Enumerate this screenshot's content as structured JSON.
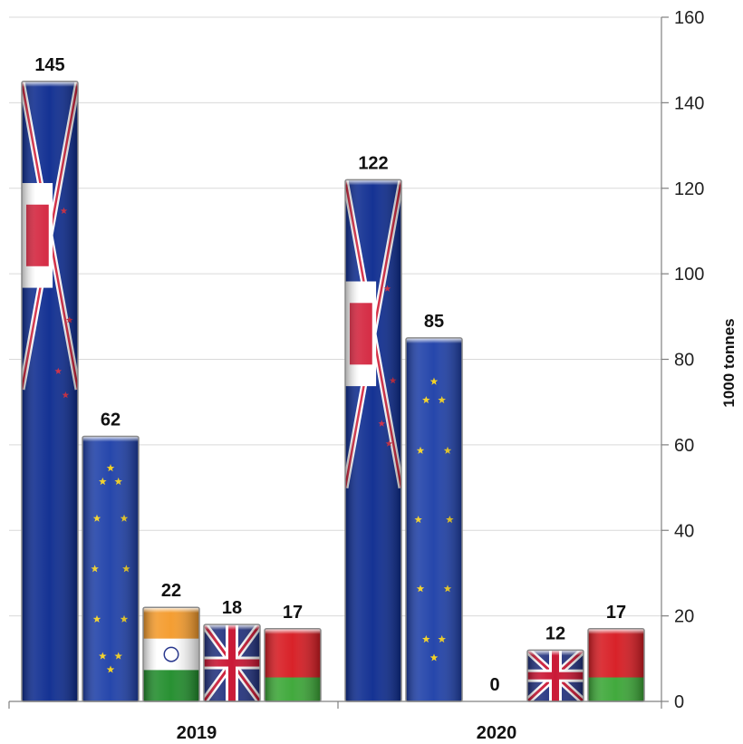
{
  "chart_data": {
    "type": "bar",
    "title": "",
    "xlabel": "",
    "ylabel": "1000 tonnes",
    "y_axis_position": "right",
    "ylim": [
      0,
      160
    ],
    "yticks": [
      0,
      20,
      40,
      60,
      80,
      100,
      120,
      140,
      160
    ],
    "grid": true,
    "legend": "none",
    "categories": [
      "2019",
      "2020"
    ],
    "series": [
      {
        "flag": "new-zealand",
        "values": [
          145,
          122
        ]
      },
      {
        "flag": "european-union",
        "values": [
          62,
          85
        ]
      },
      {
        "flag": "india",
        "values": [
          22,
          0
        ]
      },
      {
        "flag": "united-kingdom",
        "values": [
          18,
          12
        ]
      },
      {
        "flag": "belarus",
        "values": [
          17,
          17
        ]
      }
    ],
    "colors": {
      "grid": "#d9d9d9",
      "axis": "#808080",
      "bar_border": "#8a8a8a",
      "nz_blue": "#0b2a8f",
      "nz_red": "#d3213b",
      "eu_blue": "#1d3fa8",
      "eu_star": "#f2cf1b",
      "india_saffron": "#f49a2a",
      "india_green": "#1f8c2a",
      "india_chakra": "#1a2a86",
      "uk_blue": "#1f2f7d",
      "uk_red": "#c8102e",
      "by_red": "#d71920",
      "by_green": "#3aa635"
    }
  }
}
